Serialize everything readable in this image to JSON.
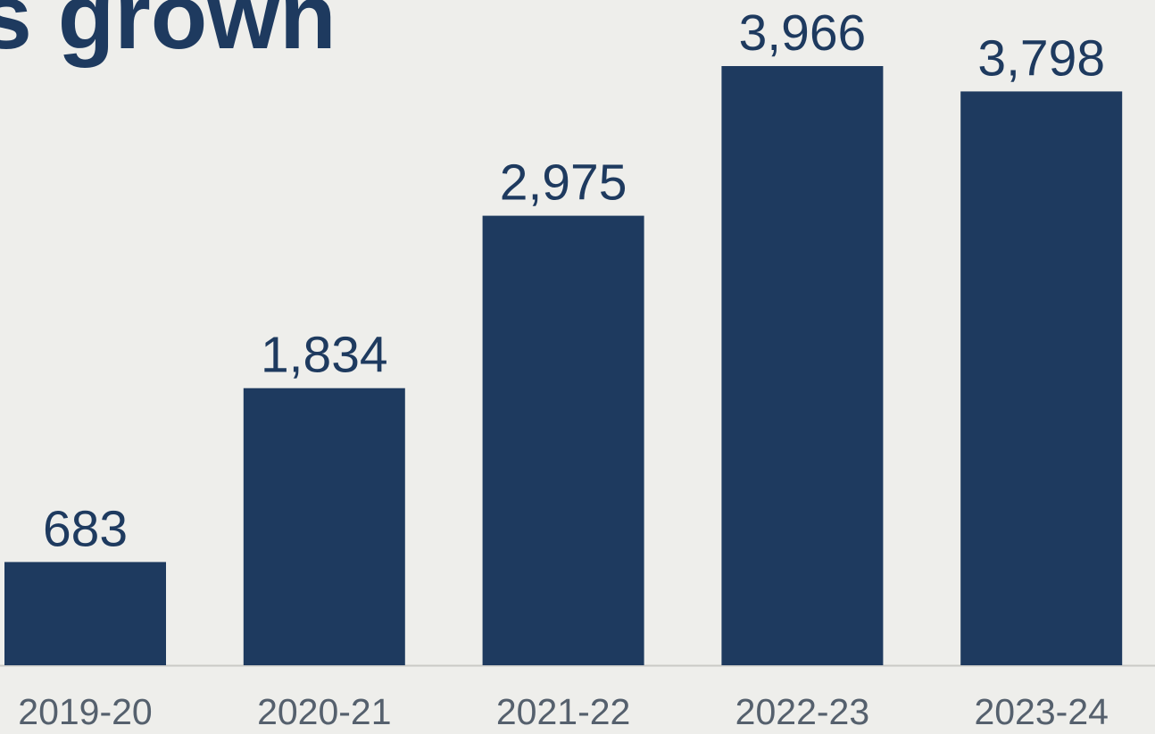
{
  "title": "s grown",
  "colors": {
    "bar": "#1e3a5f",
    "value_text": "#1e3a5f",
    "category_text": "#55606d",
    "baseline": "#c9c9c6",
    "background": "#eeeeeb"
  },
  "chart_data": {
    "type": "bar",
    "title": "s grown",
    "categories": [
      "2019-20",
      "2020-21",
      "2021-22",
      "2022-23",
      "2023-24"
    ],
    "values": [
      683,
      1834,
      2975,
      3966,
      3798
    ],
    "value_labels": [
      "683",
      "1,834",
      "2,975",
      "3,966",
      "3,798"
    ],
    "xlabel": "",
    "ylabel": "",
    "ylim": [
      0,
      4200
    ],
    "grid": false,
    "legend": "none"
  }
}
